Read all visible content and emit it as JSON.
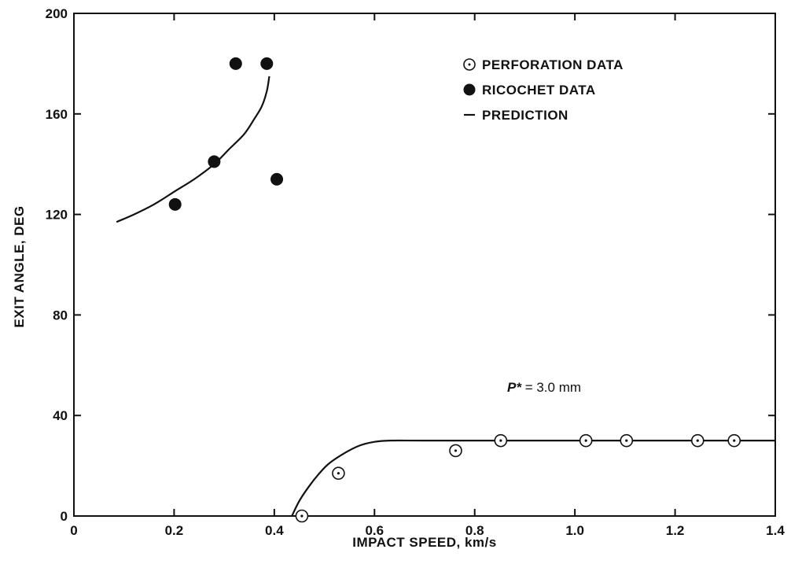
{
  "chart_data": {
    "type": "scatter",
    "title": "",
    "xlabel": "IMPACT SPEED, km/s",
    "ylabel": "EXIT ANGLE, DEG",
    "xlim": [
      0,
      1.4
    ],
    "ylim": [
      0,
      200
    ],
    "x_ticks": [
      0,
      0.2,
      0.4,
      0.6,
      0.8,
      1.0,
      1.2,
      1.4
    ],
    "x_tick_labels": [
      "0",
      "0.2",
      "0.4",
      "0.6",
      "0.8",
      "1.0",
      "1.2",
      "1.4"
    ],
    "y_ticks": [
      0,
      40,
      80,
      120,
      160,
      200
    ],
    "y_tick_labels": [
      "0",
      "40",
      "80",
      "120",
      "160",
      "200"
    ],
    "grid": false,
    "legend_position": "top-right",
    "series": [
      {
        "name": "PERFORATION DATA",
        "marker": "circle-dot",
        "color": "#111111",
        "x": [
          0.455,
          0.528,
          0.762,
          0.852,
          1.022,
          1.103,
          1.245,
          1.318
        ],
        "y": [
          0,
          17,
          26,
          30,
          30,
          30,
          30,
          30
        ]
      },
      {
        "name": "RICOCHET DATA",
        "marker": "filled-circle",
        "color": "#111111",
        "x": [
          0.202,
          0.28,
          0.323,
          0.385,
          0.405
        ],
        "y": [
          124,
          141,
          180,
          180,
          134
        ]
      },
      {
        "name": "PREDICTION",
        "marker": "line",
        "color": "#111111",
        "segments": [
          {
            "x": [
              0.085,
              0.12,
              0.16,
              0.2,
              0.24,
              0.28,
              0.31,
              0.34,
              0.36,
              0.375,
              0.385,
              0.39
            ],
            "y": [
              117,
              120,
              124,
              129,
              134,
              140,
              146,
              152,
              158,
              163,
              169,
              175
            ]
          },
          {
            "x": [
              0.435,
              0.45,
              0.47,
              0.49,
              0.51,
              0.54,
              0.57,
              0.6,
              0.63,
              0.7,
              0.85,
              1.0,
              1.2,
              1.4
            ],
            "y": [
              0,
              6,
              12,
              17,
              21,
              25,
              28,
              29.5,
              30,
              30,
              30,
              30,
              30,
              30
            ]
          }
        ]
      }
    ],
    "annotations": [
      {
        "symbol": "P*",
        "text": " = 3.0 mm",
        "x": 0.86,
        "y": 51
      }
    ]
  }
}
